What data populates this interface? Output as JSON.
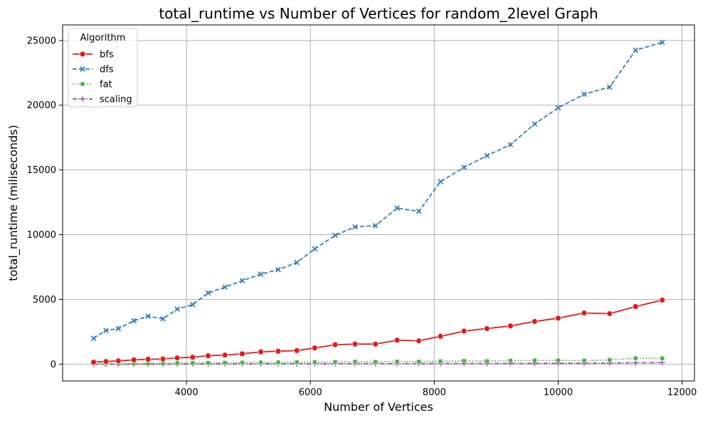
{
  "chart_data": {
    "type": "line",
    "title": "total_runtime vs Number of Vertices for random_2level Graph",
    "xlabel": "Number of Vertices",
    "ylabel": "total_runtime (miliseconds)",
    "xlim": [
      2000,
      12200
    ],
    "ylim": [
      -1300,
      26200
    ],
    "xticks": [
      4000,
      6000,
      8000,
      10000,
      12000
    ],
    "yticks": [
      0,
      5000,
      10000,
      15000,
      20000,
      25000
    ],
    "grid": true,
    "legend": {
      "title": "Algorithm",
      "placement": "top-left"
    },
    "x": [
      2500,
      2700,
      2900,
      3150,
      3380,
      3620,
      3850,
      4100,
      4350,
      4620,
      4900,
      5200,
      5480,
      5780,
      6070,
      6400,
      6720,
      7050,
      7400,
      7750,
      8100,
      8480,
      8850,
      9230,
      9620,
      10000,
      10420,
      10830,
      11250,
      11680
    ],
    "series": [
      {
        "name": "bfs",
        "color": "#e41a1c",
        "dash": "solid",
        "marker": "circle",
        "values": [
          150,
          200,
          250,
          330,
          380,
          400,
          480,
          530,
          650,
          700,
          800,
          950,
          1000,
          1050,
          1250,
          1500,
          1550,
          1550,
          1850,
          1800,
          2150,
          2550,
          2750,
          2950,
          3300,
          3550,
          3950,
          3900,
          4450,
          4950
        ]
      },
      {
        "name": "dfs",
        "color": "#377eb8",
        "dash": "dashed",
        "marker": "x",
        "values": [
          2000,
          2600,
          2750,
          3350,
          3700,
          3500,
          4250,
          4600,
          5500,
          5950,
          6450,
          6950,
          7300,
          7850,
          8900,
          9950,
          10600,
          10700,
          12050,
          11800,
          14100,
          15200,
          16100,
          16950,
          18550,
          19800,
          20850,
          21400,
          24250,
          24850
        ]
      },
      {
        "name": "fat",
        "color": "#4daf4a",
        "dash": "dotted",
        "marker": "square",
        "values": [
          30,
          40,
          50,
          60,
          65,
          70,
          80,
          90,
          100,
          110,
          120,
          130,
          140,
          150,
          160,
          170,
          190,
          180,
          200,
          190,
          220,
          250,
          230,
          270,
          280,
          290,
          270,
          330,
          460,
          450
        ]
      },
      {
        "name": "scaling",
        "color": "#984ea3",
        "dash": "dashdot",
        "marker": "plus",
        "values": [
          -20,
          -15,
          -10,
          -5,
          -5,
          0,
          5,
          10,
          10,
          15,
          20,
          20,
          25,
          25,
          30,
          30,
          35,
          35,
          40,
          40,
          45,
          50,
          50,
          55,
          60,
          65,
          70,
          80,
          110,
          120
        ]
      }
    ]
  }
}
